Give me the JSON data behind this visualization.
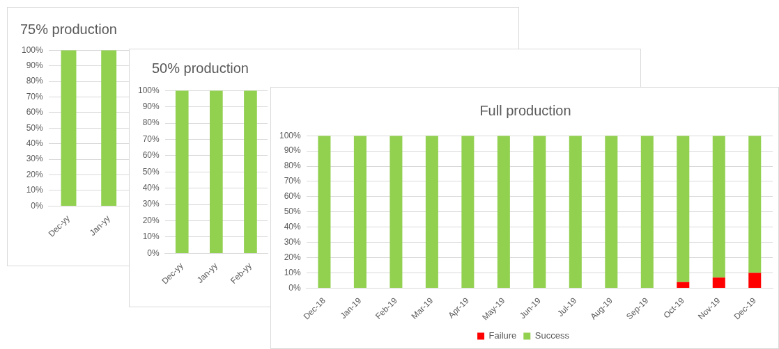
{
  "chart_data": [
    {
      "type": "bar",
      "title": "75% production",
      "categories": [
        "Dec-yy",
        "Jan-yy"
      ],
      "stacked": true,
      "grid": "y",
      "series": [
        {
          "color": "#92d050",
          "values": [
            100,
            100
          ]
        }
      ],
      "ylim": [
        0,
        100
      ],
      "yticks": [
        {
          "value": 0,
          "label": "0%"
        },
        {
          "value": 10,
          "label": "10%"
        },
        {
          "value": 20,
          "label": "20%"
        },
        {
          "value": 30,
          "label": "30%"
        },
        {
          "value": 40,
          "label": "40%"
        },
        {
          "value": 50,
          "label": "50%"
        },
        {
          "value": 60,
          "label": "60%"
        },
        {
          "value": 70,
          "label": "70%"
        },
        {
          "value": 80,
          "label": "80%"
        },
        {
          "value": 90,
          "label": "90%"
        },
        {
          "value": 100,
          "label": "100%"
        }
      ]
    },
    {
      "type": "bar",
      "title": "50% production",
      "categories": [
        "Dec-yy",
        "Jan-yy",
        "Feb-yy"
      ],
      "stacked": true,
      "grid": "y",
      "series": [
        {
          "color": "#92d050",
          "values": [
            100,
            100,
            100
          ]
        }
      ],
      "ylim": [
        0,
        100
      ],
      "yticks": [
        {
          "value": 0,
          "label": "0%"
        },
        {
          "value": 10,
          "label": "10%"
        },
        {
          "value": 20,
          "label": "20%"
        },
        {
          "value": 30,
          "label": "30%"
        },
        {
          "value": 40,
          "label": "40%"
        },
        {
          "value": 50,
          "label": "50%"
        },
        {
          "value": 60,
          "label": "60%"
        },
        {
          "value": 70,
          "label": "70%"
        },
        {
          "value": 80,
          "label": "80%"
        },
        {
          "value": 90,
          "label": "90%"
        },
        {
          "value": 100,
          "label": "100%"
        }
      ]
    },
    {
      "type": "bar",
      "title": "Full production",
      "categories": [
        "Dec-18",
        "Jan-19",
        "Feb-19",
        "Mar-19",
        "Apr-19",
        "May-19",
        "Jun-19",
        "Jul-19",
        "Aug-19",
        "Sep-19",
        "Oct-19",
        "Nov-19",
        "Dec-19"
      ],
      "stacked": true,
      "grid": "y",
      "legend": "bottom",
      "series": [
        {
          "name": "Failure",
          "color": "#ff0000",
          "values": [
            0,
            0,
            0,
            0,
            0,
            0,
            0,
            0,
            0,
            0,
            4,
            7,
            10
          ]
        },
        {
          "name": "Success",
          "color": "#92d050",
          "values": [
            100,
            100,
            100,
            100,
            100,
            100,
            100,
            100,
            100,
            100,
            96,
            93,
            90
          ]
        }
      ],
      "ylim": [
        0,
        100
      ],
      "yticks": [
        {
          "value": 0,
          "label": "0%"
        },
        {
          "value": 10,
          "label": "10%"
        },
        {
          "value": 20,
          "label": "20%"
        },
        {
          "value": 30,
          "label": "30%"
        },
        {
          "value": 40,
          "label": "40%"
        },
        {
          "value": 50,
          "label": "50%"
        },
        {
          "value": 60,
          "label": "60%"
        },
        {
          "value": 70,
          "label": "70%"
        },
        {
          "value": 80,
          "label": "80%"
        },
        {
          "value": 90,
          "label": "90%"
        },
        {
          "value": 100,
          "label": "100%"
        }
      ]
    }
  ]
}
